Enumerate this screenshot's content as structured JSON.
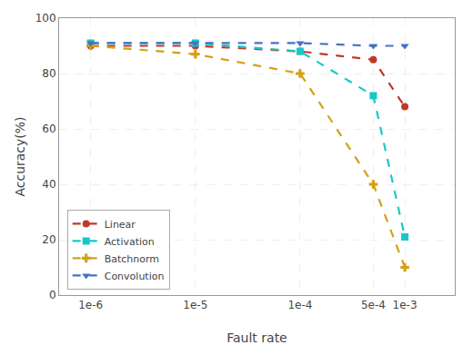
{
  "chart_data": {
    "type": "line",
    "x": [
      1e-06,
      1e-05,
      0.0001,
      0.0005,
      0.001
    ],
    "series": [
      {
        "name": "Linear",
        "color": "#c0392b",
        "values": [
          90,
          90,
          88,
          85,
          68
        ],
        "marker": "circle"
      },
      {
        "name": "Activation",
        "color": "#17c8c8",
        "values": [
          91,
          91,
          88,
          72,
          21
        ],
        "marker": "square"
      },
      {
        "name": "Batchnorm",
        "color": "#d4a017",
        "values": [
          90,
          87,
          80,
          40,
          10
        ],
        "marker": "plus"
      },
      {
        "name": "Convolution",
        "color": "#4472c4",
        "values": [
          91,
          91,
          91,
          90,
          90
        ],
        "marker": "triangle-down"
      }
    ],
    "xlabel": "Fault rate",
    "ylabel": "Accuracy(%)",
    "log": "x",
    "xlim": [
      5e-07,
      0.003
    ],
    "xticks": [
      {
        "value": 1e-06,
        "label": "1e-6"
      },
      {
        "value": 1e-05,
        "label": "1e-5"
      },
      {
        "value": 0.0001,
        "label": "1e-4"
      },
      {
        "value": 0.0005,
        "label": "5e-4"
      },
      {
        "value": 0.001,
        "label": "1e-3"
      }
    ],
    "ylim": [
      0,
      100
    ],
    "yticks": [
      0,
      20,
      40,
      60,
      80,
      100
    ],
    "grid": true,
    "legend": "lower left",
    "line_style": "dashed"
  }
}
